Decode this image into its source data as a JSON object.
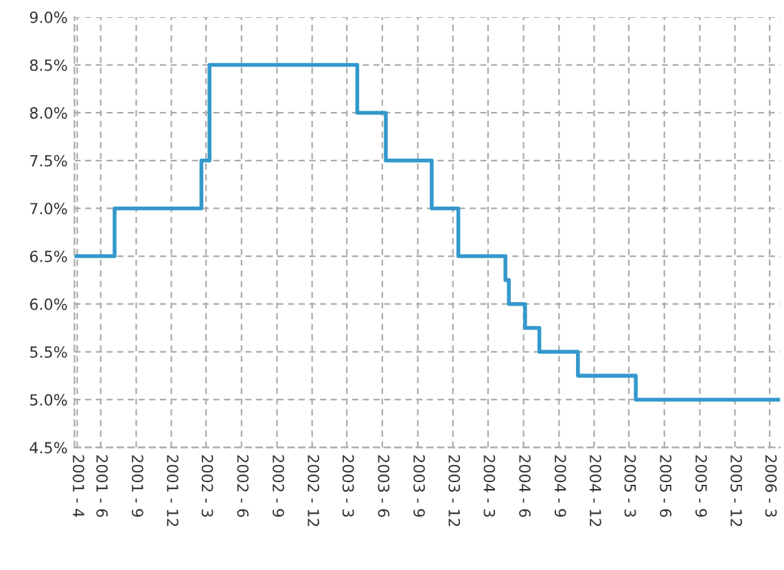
{
  "chart_data": {
    "type": "step",
    "xlim": [
      "2001-03-25",
      "2006-03-28"
    ],
    "ylim": [
      4.5,
      9.0
    ],
    "xticks": [
      {
        "value": "2001-04",
        "label": "2001 - 4"
      },
      {
        "value": "2001-06",
        "label": "2001 - 6"
      },
      {
        "value": "2001-09",
        "label": "2001 - 9"
      },
      {
        "value": "2001-12",
        "label": "2001 - 12"
      },
      {
        "value": "2002-03",
        "label": "2002 - 3"
      },
      {
        "value": "2002-06",
        "label": "2002 - 6"
      },
      {
        "value": "2002-09",
        "label": "2002 - 9"
      },
      {
        "value": "2002-12",
        "label": "2002 - 12"
      },
      {
        "value": "2003-03",
        "label": "2003 - 3"
      },
      {
        "value": "2003-06",
        "label": "2003 - 6"
      },
      {
        "value": "2003-09",
        "label": "2003 - 9"
      },
      {
        "value": "2003-12",
        "label": "2003 - 12"
      },
      {
        "value": "2004-03",
        "label": "2004 - 3"
      },
      {
        "value": "2004-06",
        "label": "2004 - 6"
      },
      {
        "value": "2004-09",
        "label": "2004 - 9"
      },
      {
        "value": "2004-12",
        "label": "2004 - 12"
      },
      {
        "value": "2005-03",
        "label": "2005 - 3"
      },
      {
        "value": "2005-06",
        "label": "2005 - 6"
      },
      {
        "value": "2005-09",
        "label": "2005 - 9"
      },
      {
        "value": "2005-12",
        "label": "2005 - 12"
      },
      {
        "value": "2006-03",
        "label": "2006 - 3"
      }
    ],
    "yticks": [
      {
        "value": 4.5,
        "label": "4.5%"
      },
      {
        "value": 5.0,
        "label": "5.0%"
      },
      {
        "value": 5.5,
        "label": "5.5%"
      },
      {
        "value": 6.0,
        "label": "6.0%"
      },
      {
        "value": 6.5,
        "label": "6.5%"
      },
      {
        "value": 7.0,
        "label": "7.0%"
      },
      {
        "value": 7.5,
        "label": "7.5%"
      },
      {
        "value": 8.0,
        "label": "8.0%"
      },
      {
        "value": 8.5,
        "label": "8.5%"
      },
      {
        "value": 9.0,
        "label": "9.0%"
      }
    ],
    "grid": true,
    "series": [
      {
        "color": "#3399cc",
        "x": [
          "2001-03-25",
          "2001-07-07",
          "2002-02-17",
          "2002-03-10",
          "2003-03-28",
          "2003-06-10",
          "2003-10-07",
          "2003-12-15",
          "2004-04-15",
          "2004-04-24",
          "2004-06-05",
          "2004-07-12",
          "2004-10-20",
          "2005-03-19",
          "2006-03-28"
        ],
        "values": [
          6.5,
          7.0,
          7.5,
          8.5,
          8.0,
          7.5,
          7.0,
          6.5,
          6.25,
          6.0,
          5.75,
          5.5,
          5.25,
          5.0,
          5.0
        ]
      }
    ]
  }
}
